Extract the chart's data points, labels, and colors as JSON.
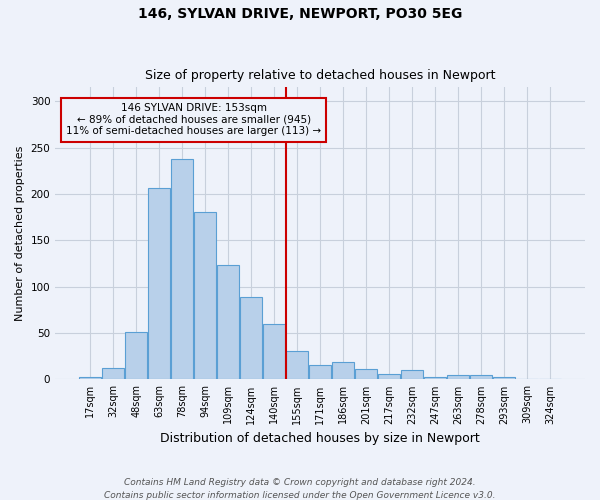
{
  "title_line1": "146, SYLVAN DRIVE, NEWPORT, PO30 5EG",
  "title_line2": "Size of property relative to detached houses in Newport",
  "xlabel": "Distribution of detached houses by size in Newport",
  "ylabel": "Number of detached properties",
  "footnote1": "Contains HM Land Registry data © Crown copyright and database right 2024.",
  "footnote2": "Contains public sector information licensed under the Open Government Licence v3.0.",
  "bin_labels": [
    "17sqm",
    "32sqm",
    "48sqm",
    "63sqm",
    "78sqm",
    "94sqm",
    "109sqm",
    "124sqm",
    "140sqm",
    "155sqm",
    "171sqm",
    "186sqm",
    "201sqm",
    "217sqm",
    "232sqm",
    "247sqm",
    "263sqm",
    "278sqm",
    "293sqm",
    "309sqm",
    "324sqm"
  ],
  "bar_values": [
    3,
    12,
    51,
    206,
    238,
    181,
    123,
    89,
    60,
    31,
    16,
    19,
    11,
    6,
    10,
    3,
    5,
    5,
    3,
    1,
    0
  ],
  "bar_color": "#b8d0ea",
  "bar_edge_color": "#5a9fd4",
  "grid_color": "#c8d0dc",
  "vline_x": 9,
  "vline_color": "#cc0000",
  "annotation_text": "146 SYLVAN DRIVE: 153sqm\n← 89% of detached houses are smaller (945)\n11% of semi-detached houses are larger (113) →",
  "annotation_box_facecolor": "#eef2fa",
  "annotation_box_edgecolor": "#cc0000",
  "ylim": [
    0,
    315
  ],
  "yticks": [
    0,
    50,
    100,
    150,
    200,
    250,
    300
  ],
  "bg_color": "#eef2fa",
  "title1_fontsize": 10,
  "title2_fontsize": 9,
  "xlabel_fontsize": 9,
  "ylabel_fontsize": 8,
  "tick_fontsize": 7,
  "annotation_fontsize": 7.5,
  "footnote_fontsize": 6.5
}
